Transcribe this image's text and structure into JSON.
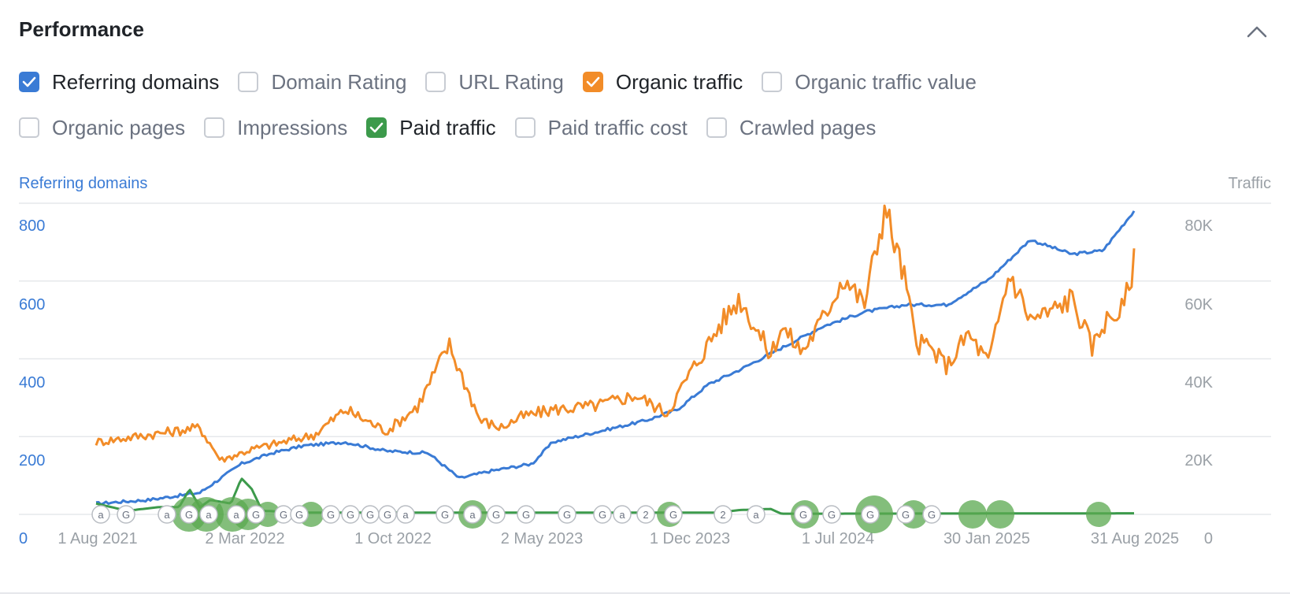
{
  "title": "Performance",
  "collapse_icon": "chevron-up-icon",
  "options_row1": [
    {
      "label": "Referring domains",
      "checked": true,
      "color": "#3a7bd5"
    },
    {
      "label": "Domain Rating",
      "checked": false
    },
    {
      "label": "URL Rating",
      "checked": false
    },
    {
      "label": "Organic traffic",
      "checked": true,
      "color": "#f28c28"
    },
    {
      "label": "Organic traffic value",
      "checked": false
    }
  ],
  "options_row2": [
    {
      "label": "Organic pages",
      "checked": false
    },
    {
      "label": "Impressions",
      "checked": false
    },
    {
      "label": "Paid traffic",
      "checked": true,
      "color": "#3c9a4b"
    },
    {
      "label": "Paid traffic cost",
      "checked": false
    },
    {
      "label": "Crawled pages",
      "checked": false
    }
  ],
  "chart_data": {
    "type": "line",
    "left_axis_title": "Referring domains",
    "right_axis_title": "Traffic",
    "ylim_left": [
      0,
      800
    ],
    "ylim_right": [
      0,
      80000
    ],
    "left_ticks": [
      "0",
      "200",
      "400",
      "600",
      "800"
    ],
    "right_ticks": [
      "0",
      "20K",
      "40K",
      "60K",
      "80K"
    ],
    "x_ticks": [
      "1 Aug 2021",
      "2 Mar 2022",
      "1 Oct 2022",
      "2 May 2023",
      "1 Dec 2023",
      "1 Jul 2024",
      "30 Jan 2025",
      "31 Aug 2025"
    ],
    "grid": true,
    "colors": {
      "referring_domains": "#3a7bd5",
      "organic_traffic": "#f28c28",
      "paid_traffic": "#3c9a4b",
      "grid": "#e6e8eb",
      "left_axis": "#3a7bd5",
      "right_axis": "#9aa0a6",
      "x_axis": "#9aa0a6"
    },
    "series": [
      {
        "name": "Referring domains",
        "axis": "left",
        "x": [
          0,
          0.05,
          0.1,
          0.14,
          0.17,
          0.2,
          0.24,
          0.28,
          0.32,
          0.35,
          0.38,
          0.42,
          0.44,
          0.47,
          0.5,
          0.53,
          0.56,
          0.59,
          0.62,
          0.66,
          0.7,
          0.74,
          0.78,
          0.82,
          0.86,
          0.9,
          0.94,
          0.97,
          1.0
        ],
        "y": [
          30,
          40,
          60,
          140,
          170,
          190,
          200,
          175,
          170,
          100,
          120,
          140,
          200,
          220,
          240,
          260,
          290,
          360,
          400,
          460,
          520,
          560,
          580,
          580,
          650,
          760,
          720,
          730,
          840
        ]
      },
      {
        "name": "Organic traffic",
        "axis": "right",
        "x": [
          0,
          0.05,
          0.1,
          0.12,
          0.15,
          0.18,
          0.21,
          0.24,
          0.28,
          0.31,
          0.34,
          0.37,
          0.39,
          0.41,
          0.44,
          0.48,
          0.52,
          0.55,
          0.57,
          0.6,
          0.62,
          0.65,
          0.66,
          0.68,
          0.7,
          0.72,
          0.74,
          0.76,
          0.78,
          0.79,
          0.8,
          0.82,
          0.84,
          0.86,
          0.88,
          0.9,
          0.92,
          0.94,
          0.96,
          0.97,
          0.99,
          1.0
        ],
        "y": [
          20000,
          22000,
          24000,
          15000,
          18000,
          20000,
          22000,
          29000,
          23000,
          30000,
          47000,
          26000,
          24000,
          27000,
          29000,
          30000,
          33000,
          28000,
          38000,
          52000,
          60000,
          44000,
          52000,
          45000,
          54000,
          66000,
          58000,
          85000,
          64000,
          47000,
          47000,
          41000,
          50000,
          42000,
          67000,
          54000,
          56000,
          60000,
          46000,
          53000,
          57000,
          70000
        ]
      },
      {
        "name": "Paid traffic",
        "axis": "right",
        "x": [
          0,
          0.03,
          0.06,
          0.08,
          0.09,
          0.1,
          0.11,
          0.13,
          0.14,
          0.15,
          0.16,
          0.2,
          0.4,
          0.55,
          0.6,
          0.62,
          0.65,
          0.66,
          0.7,
          1.0
        ],
        "y": [
          3000,
          1000,
          2000,
          2000,
          7000,
          2000,
          4000,
          3000,
          10000,
          7000,
          1000,
          500,
          500,
          500,
          500,
          1200,
          1500,
          200,
          200,
          300
        ]
      }
    ]
  },
  "event_markers": [
    "a",
    "G",
    "a",
    "G",
    "a",
    "a",
    "G",
    "G",
    "G",
    "G",
    "G",
    "G",
    "G",
    "a",
    "G",
    "a",
    "G",
    "G",
    "G",
    "G",
    "a",
    "2",
    "G",
    "2",
    "a",
    "G",
    "G",
    "G",
    "G",
    "G"
  ]
}
